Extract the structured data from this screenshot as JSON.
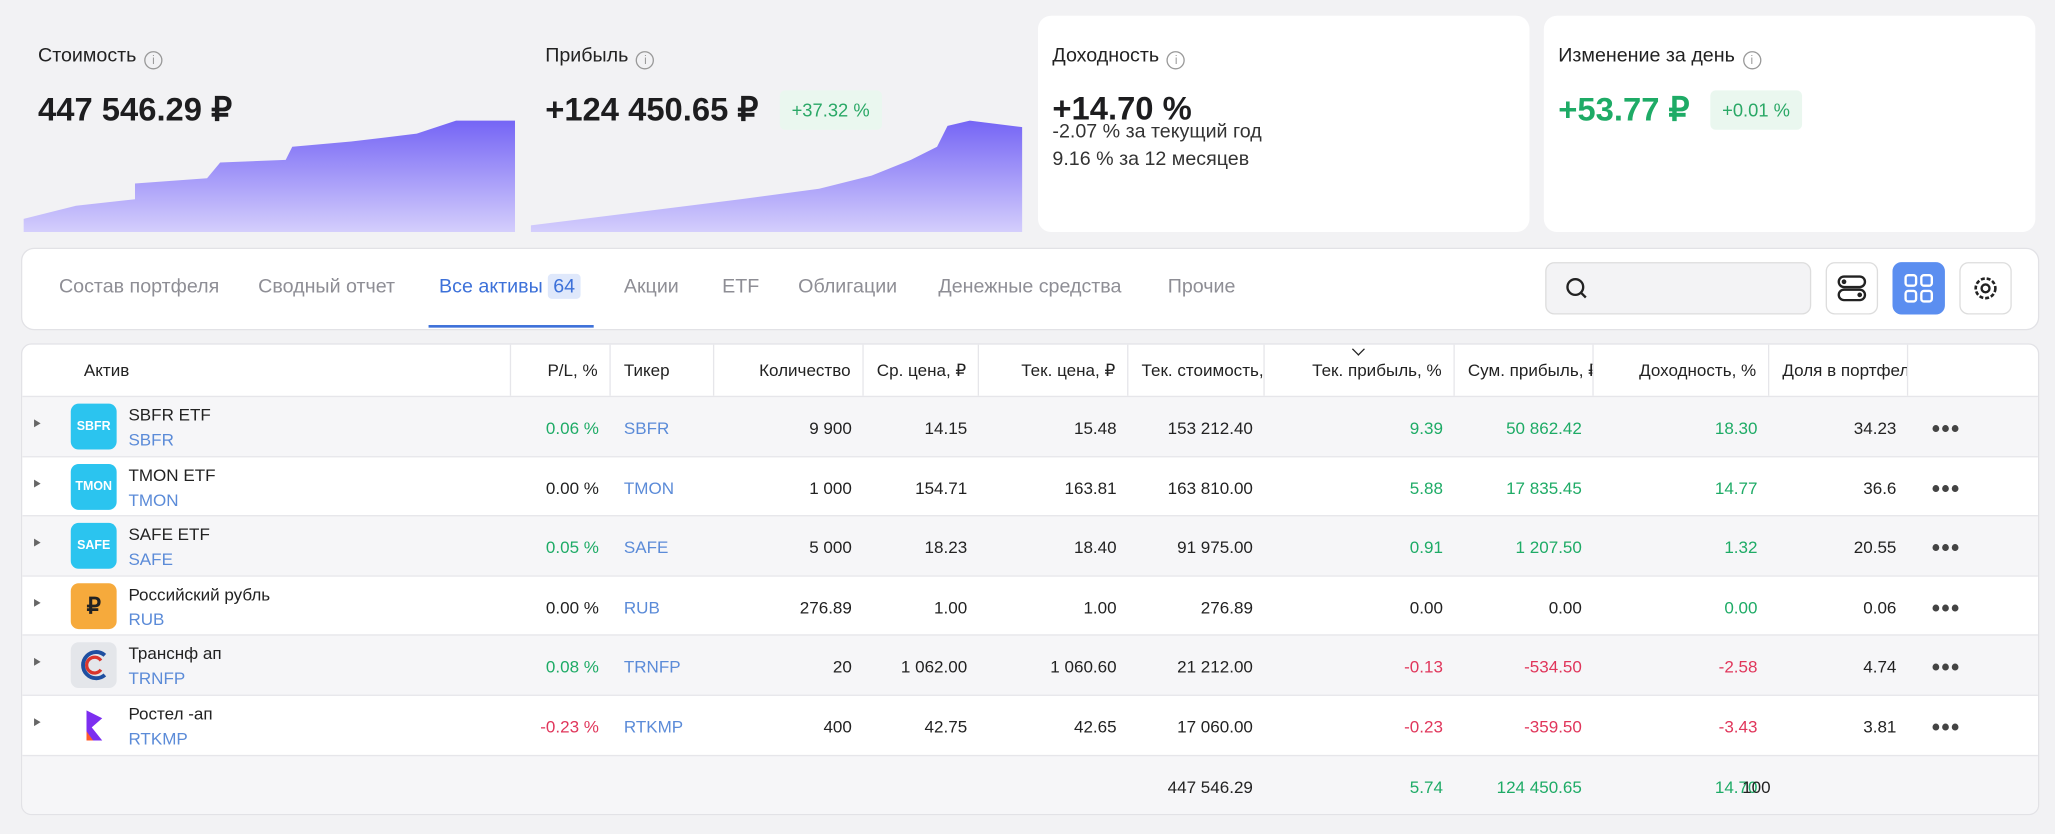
{
  "cards": [
    {
      "title": "Стоимость",
      "value": "447 546.29 ₽"
    },
    {
      "title": "Прибыль",
      "value": "+124 450.65 ₽",
      "badge": "+37.32 %"
    },
    {
      "title": "Доходность",
      "value": "+14.70 %",
      "lines": [
        "-2.07 % за текущий год",
        "9.16 % за 12 месяцев"
      ]
    },
    {
      "title": "Изменение за день",
      "value": "+53.77 ₽",
      "badge": "+0.01 %"
    }
  ],
  "tabs": [
    {
      "label": "Состав портфеля"
    },
    {
      "label": "Сводный отчет"
    },
    {
      "label": "Все активы",
      "count": "64"
    },
    {
      "label": "Акции"
    },
    {
      "label": "ETF"
    },
    {
      "label": "Облигации"
    },
    {
      "label": "Денежные средства"
    },
    {
      "label": "Прочие"
    }
  ],
  "table": {
    "headers": [
      "Актив",
      "P/L, %",
      "Тикер",
      "Количество",
      "Ср. цена, ₽",
      "Тек. цена, ₽",
      "Тек. стоимость, ₽",
      "Тек. прибыль, %",
      "Сум. прибыль, ₽",
      "Доходность, %",
      "Доля в портфеле"
    ],
    "rows": [
      {
        "icon": "SBFR",
        "name": "SBFR ETF",
        "ticker": "SBFR",
        "cells": [
          "0.06 %",
          "9 900",
          "14.15",
          "15.48",
          "153 212.40",
          "9.39",
          "50 862.42",
          "18.30",
          "34.23"
        ]
      },
      {
        "icon": "TMON",
        "name": "TMON ETF",
        "ticker": "TMON",
        "cells": [
          "0.00 %",
          "1 000",
          "154.71",
          "163.81",
          "163 810.00",
          "5.88",
          "17 835.45",
          "14.77",
          "36.6"
        ]
      },
      {
        "icon": "SAFE",
        "name": "SAFE ETF",
        "ticker": "SAFE",
        "cells": [
          "0.05 %",
          "5 000",
          "18.23",
          "18.40",
          "91 975.00",
          "0.91",
          "1 207.50",
          "1.32",
          "20.55"
        ]
      },
      {
        "icon": "₽",
        "name": "Российский рубль",
        "ticker": "RUB",
        "cells": [
          "0.00 %",
          "276.89",
          "1.00",
          "1.00",
          "276.89",
          "0.00",
          "0.00",
          "0.00",
          "0.06"
        ]
      },
      {
        "name": "Транснф ап",
        "ticker": "TRNFP",
        "cells": [
          "0.08 %",
          "20",
          "1 062.00",
          "1 060.60",
          "21 212.00",
          "-0.13",
          "-534.50",
          "-2.58",
          "4.74"
        ]
      },
      {
        "name": "Ростел -ап",
        "ticker": "RTKMP",
        "cells": [
          "-0.23 %",
          "400",
          "42.75",
          "42.65",
          "17 060.00",
          "-0.23",
          "-359.50",
          "-3.43",
          "3.81"
        ]
      }
    ],
    "totals": [
      "447 546.29",
      "5.74",
      "124 450.65",
      "14.70",
      "100"
    ]
  }
}
